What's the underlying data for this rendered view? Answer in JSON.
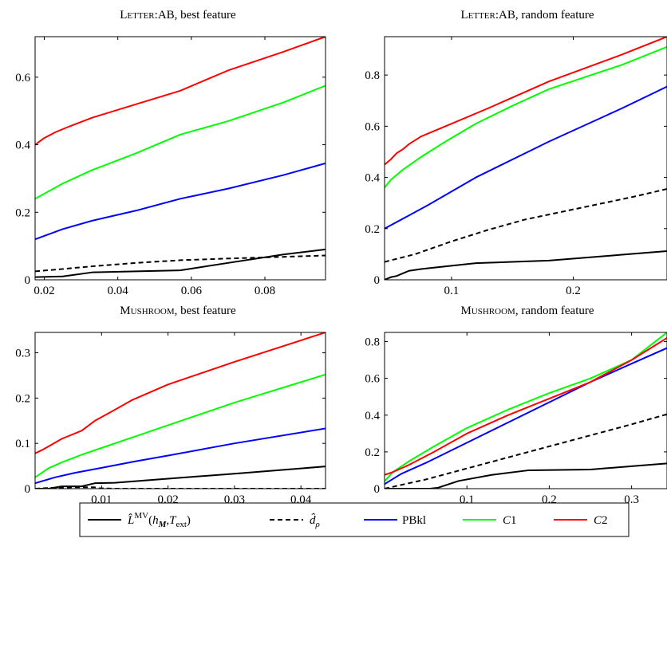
{
  "colors": {
    "lmv": "#000000",
    "drho": "#000000",
    "pbkl": "#0000ff",
    "c1": "#00ff00",
    "c2": "#ff0000"
  },
  "legend": [
    {
      "key": "lmv",
      "label": "L̂MV(hM,Text)",
      "dashed": false
    },
    {
      "key": "drho",
      "label": "d̂ρ",
      "dashed": true
    },
    {
      "key": "pbkl",
      "label": "PBkl",
      "dashed": false
    },
    {
      "key": "c1",
      "label": "C1",
      "dashed": false
    },
    {
      "key": "c2",
      "label": "C2",
      "dashed": false
    }
  ],
  "chart_data": [
    {
      "type": "line",
      "title_sc": "Letter",
      "title_rest": ":AB, best feature",
      "xlim": [
        0.0175,
        0.0965
      ],
      "ylim": [
        0,
        0.72
      ],
      "xticks": [
        0.02,
        0.04,
        0.06,
        0.08
      ],
      "xtick_labels": [
        "0.02",
        "0.04",
        "0.06",
        "0.08"
      ],
      "yticks": [
        0,
        0.2,
        0.4,
        0.6
      ],
      "ytick_labels": [
        "0",
        "0.2",
        "0.4",
        "0.6"
      ],
      "series": [
        {
          "key": "lmv",
          "x": [
            0.0175,
            0.025,
            0.033,
            0.045,
            0.057,
            0.07,
            0.085,
            0.0965
          ],
          "y": [
            0.008,
            0.01,
            0.022,
            0.025,
            0.028,
            0.05,
            0.075,
            0.09
          ]
        },
        {
          "key": "drho",
          "x": [
            0.0175,
            0.025,
            0.033,
            0.045,
            0.057,
            0.07,
            0.085,
            0.0965
          ],
          "y": [
            0.025,
            0.032,
            0.04,
            0.05,
            0.058,
            0.063,
            0.068,
            0.072
          ]
        },
        {
          "key": "pbkl",
          "x": [
            0.0175,
            0.025,
            0.033,
            0.045,
            0.057,
            0.07,
            0.085,
            0.0965
          ],
          "y": [
            0.12,
            0.15,
            0.175,
            0.205,
            0.24,
            0.27,
            0.31,
            0.345
          ]
        },
        {
          "key": "c1",
          "x": [
            0.0175,
            0.025,
            0.033,
            0.045,
            0.057,
            0.07,
            0.085,
            0.0965
          ],
          "y": [
            0.24,
            0.285,
            0.325,
            0.375,
            0.43,
            0.47,
            0.525,
            0.575
          ]
        },
        {
          "key": "c2",
          "x": [
            0.0175,
            0.02,
            0.023,
            0.027,
            0.033,
            0.045,
            0.057,
            0.07,
            0.085,
            0.0965
          ],
          "y": [
            0.4,
            0.42,
            0.437,
            0.455,
            0.48,
            0.52,
            0.56,
            0.62,
            0.675,
            0.72
          ]
        }
      ]
    },
    {
      "type": "line",
      "title_sc": "Letter",
      "title_rest": ":AB, random feature",
      "xlim": [
        0.045,
        0.277
      ],
      "ylim": [
        0,
        0.95
      ],
      "xticks": [
        0.1,
        0.2
      ],
      "xtick_labels": [
        "0.1",
        "0.2"
      ],
      "yticks": [
        0,
        0.2,
        0.4,
        0.6,
        0.8
      ],
      "ytick_labels": [
        "0",
        "0.2",
        "0.4",
        "0.6",
        "0.8"
      ],
      "series": [
        {
          "key": "lmv",
          "x": [
            0.045,
            0.05,
            0.055,
            0.06,
            0.065,
            0.075,
            0.09,
            0.12,
            0.18,
            0.24,
            0.277
          ],
          "y": [
            0.0,
            0.01,
            0.015,
            0.025,
            0.035,
            0.042,
            0.05,
            0.065,
            0.075,
            0.098,
            0.112
          ]
        },
        {
          "key": "drho",
          "x": [
            0.045,
            0.07,
            0.1,
            0.13,
            0.16,
            0.19,
            0.22,
            0.25,
            0.277
          ],
          "y": [
            0.07,
            0.1,
            0.15,
            0.195,
            0.235,
            0.265,
            0.295,
            0.325,
            0.355
          ]
        },
        {
          "key": "pbkl",
          "x": [
            0.045,
            0.08,
            0.12,
            0.18,
            0.24,
            0.277
          ],
          "y": [
            0.2,
            0.29,
            0.4,
            0.54,
            0.67,
            0.755
          ]
        },
        {
          "key": "c1",
          "x": [
            0.045,
            0.05,
            0.06,
            0.075,
            0.095,
            0.12,
            0.15,
            0.18,
            0.24,
            0.277
          ],
          "y": [
            0.36,
            0.39,
            0.43,
            0.48,
            0.54,
            0.61,
            0.68,
            0.745,
            0.84,
            0.91
          ]
        },
        {
          "key": "c2",
          "x": [
            0.045,
            0.05,
            0.055,
            0.06,
            0.065,
            0.075,
            0.1,
            0.13,
            0.18,
            0.24,
            0.277
          ],
          "y": [
            0.45,
            0.47,
            0.495,
            0.51,
            0.53,
            0.56,
            0.61,
            0.67,
            0.775,
            0.88,
            0.95
          ]
        }
      ]
    },
    {
      "type": "line",
      "title_sc": "Mushroom",
      "title_rest": ", best feature",
      "xlim": [
        0.0,
        0.0437
      ],
      "ylim": [
        0,
        0.345
      ],
      "xticks": [
        0.01,
        0.02,
        0.03,
        0.04
      ],
      "xtick_labels": [
        "0.01",
        "0.02",
        "0.03",
        "0.04"
      ],
      "yticks": [
        0,
        0.1,
        0.2,
        0.3
      ],
      "ytick_labels": [
        "0",
        "0.1",
        "0.2",
        "0.3"
      ],
      "series": [
        {
          "key": "lmv",
          "x": [
            0.0,
            0.002,
            0.004,
            0.005,
            0.007,
            0.009,
            0.012,
            0.02,
            0.03,
            0.0437
          ],
          "y": [
            0.0,
            0.0,
            0.005,
            0.005,
            0.005,
            0.012,
            0.013,
            0.022,
            0.033,
            0.049
          ]
        },
        {
          "key": "drho",
          "x": [
            0.0,
            0.003,
            0.006,
            0.009,
            0.0095,
            0.012,
            0.02,
            0.03,
            0.0437
          ],
          "y": [
            0.0,
            0.002,
            0.003,
            0.003,
            0.001,
            0.0,
            0.0,
            0.0,
            0.0
          ]
        },
        {
          "key": "pbkl",
          "x": [
            0.0,
            0.003,
            0.006,
            0.01,
            0.015,
            0.02,
            0.03,
            0.0437
          ],
          "y": [
            0.012,
            0.025,
            0.035,
            0.046,
            0.06,
            0.073,
            0.1,
            0.133
          ]
        },
        {
          "key": "c1",
          "x": [
            0.0,
            0.002,
            0.004,
            0.007,
            0.01,
            0.015,
            0.02,
            0.03,
            0.0437
          ],
          "y": [
            0.025,
            0.045,
            0.058,
            0.075,
            0.09,
            0.115,
            0.14,
            0.19,
            0.252
          ]
        },
        {
          "key": "c2",
          "x": [
            0.0,
            0.001,
            0.002,
            0.004,
            0.007,
            0.009,
            0.0115,
            0.0145,
            0.02,
            0.03,
            0.0437
          ],
          "y": [
            0.078,
            0.085,
            0.093,
            0.11,
            0.128,
            0.15,
            0.17,
            0.195,
            0.23,
            0.28,
            0.345
          ]
        }
      ]
    },
    {
      "type": "line",
      "title_sc": "Mushroom",
      "title_rest": ", random feature",
      "xlim": [
        0.0,
        0.343
      ],
      "ylim": [
        0,
        0.85
      ],
      "xticks": [
        0.1,
        0.2,
        0.3
      ],
      "xtick_labels": [
        "0.1",
        "0.2",
        "0.3"
      ],
      "yticks": [
        0,
        0.2,
        0.4,
        0.6,
        0.8
      ],
      "ytick_labels": [
        "0",
        "0.2",
        "0.4",
        "0.6",
        "0.8"
      ],
      "series": [
        {
          "key": "lmv",
          "x": [
            0.0,
            0.055,
            0.065,
            0.09,
            0.13,
            0.175,
            0.25,
            0.3,
            0.343
          ],
          "y": [
            0.0,
            0.0,
            0.005,
            0.042,
            0.075,
            0.1,
            0.104,
            0.122,
            0.137
          ]
        },
        {
          "key": "drho",
          "x": [
            0.0,
            0.05,
            0.1,
            0.15,
            0.2,
            0.25,
            0.3,
            0.343
          ],
          "y": [
            0.0,
            0.05,
            0.11,
            0.17,
            0.23,
            0.29,
            0.35,
            0.405
          ]
        },
        {
          "key": "pbkl",
          "x": [
            0.0,
            0.02,
            0.05,
            0.1,
            0.15,
            0.2,
            0.25,
            0.3,
            0.343
          ],
          "y": [
            0.025,
            0.08,
            0.14,
            0.25,
            0.36,
            0.47,
            0.58,
            0.68,
            0.765
          ]
        },
        {
          "key": "c1",
          "x": [
            0.0,
            0.01,
            0.03,
            0.06,
            0.1,
            0.15,
            0.2,
            0.25,
            0.3,
            0.343
          ],
          "y": [
            0.04,
            0.09,
            0.15,
            0.23,
            0.33,
            0.43,
            0.52,
            0.6,
            0.7,
            0.85
          ]
        },
        {
          "key": "c2",
          "x": [
            0.0,
            0.01,
            0.03,
            0.06,
            0.1,
            0.15,
            0.2,
            0.25,
            0.3,
            0.343
          ],
          "y": [
            0.075,
            0.09,
            0.13,
            0.2,
            0.3,
            0.4,
            0.49,
            0.58,
            0.7,
            0.82
          ]
        }
      ]
    }
  ]
}
